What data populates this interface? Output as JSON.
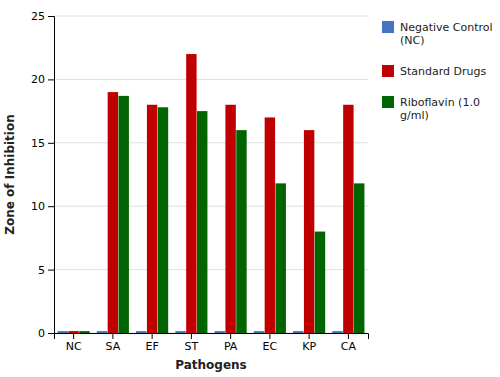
{
  "chart_data": {
    "type": "bar",
    "xlabel": "Pathogens",
    "ylabel": "Zone of Inhibition",
    "categories": [
      "NC",
      "SA",
      "EF",
      "ST",
      "PA",
      "EC",
      "KP",
      "CA"
    ],
    "series": [
      {
        "name": "Negative Control\n(NC)",
        "color": "#4472C4",
        "values": [
          0.15,
          0.15,
          0.15,
          0.15,
          0.15,
          0.15,
          0.15,
          0.15
        ]
      },
      {
        "name": "Standard Drugs",
        "color": "#C00000",
        "values": [
          0.15,
          19.0,
          18.0,
          22.0,
          18.0,
          17.0,
          16.0,
          18.0
        ]
      },
      {
        "name": "Riboflavin (1.0\ng/ml)",
        "color": "#006400",
        "values": [
          0.15,
          18.7,
          17.8,
          17.5,
          16.0,
          11.8,
          8.0,
          11.8
        ]
      }
    ],
    "ylim": [
      0,
      25
    ],
    "yticks": [
      0,
      5,
      10,
      15,
      20,
      25
    ],
    "grid": true,
    "legend": "right"
  }
}
